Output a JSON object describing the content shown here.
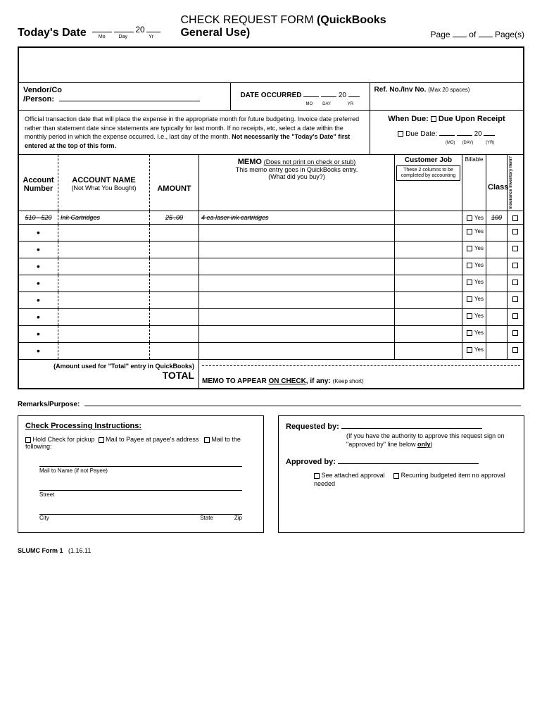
{
  "header": {
    "todays_date": "Today's Date",
    "mo": "Mo",
    "day": "Day",
    "yr": "Yr",
    "twenty": "20",
    "title_a": "CHECK REQUEST FORM ",
    "title_b": "(QuickBooks General Use)",
    "page": "Page",
    "of": "of",
    "pages": "Page(s)"
  },
  "vendor": {
    "label_a": "Vendor/Co",
    "label_b": "/Person:",
    "date_occurred": "DATE OCCURRED",
    "twenty": "20",
    "mo": "MO",
    "day": "DAY",
    "yr": "YR",
    "ref_label": "Ref. No./Inv No.",
    "ref_sub": "(Max 20 spaces)"
  },
  "notes": {
    "text_a": "Official transaction date that will place the expense in the appropriate month for future budgeting.  Invoice date preferred rather than statement date since statements are typically for last month. If no receipts, etc, select a date within the monthly period in which the expense occurred. I.e., last day of the month. ",
    "text_b": "Not necessarily the \"Today's Date\" first entered at the top of this form.",
    "when_due": "When Due:",
    "due_upon": "Due Upon Receipt",
    "due_date": "Due Date:",
    "twenty": "20",
    "mo": "(MO)",
    "day": "(DAY)",
    "yr": "(YR)"
  },
  "thead": {
    "acct_num_a": "Account",
    "acct_num_b": "Number",
    "acct_name_a": "ACCOUNT NAME",
    "acct_name_b": "(Not What You Bought)",
    "amount": "AMOUNT",
    "memo_a": "MEMO",
    "memo_b": "(Does not print on check or stub)",
    "memo_c": "This memo entry goes in QuickBooks entry.",
    "memo_d": "(What did you buy?)",
    "cust_job": "Customer Job",
    "cust_note": "These 2 columns to be completed by accounting",
    "billable": "Billable",
    "class": "Class",
    "inv": "Insurance Inventory Item?"
  },
  "rows": [
    {
      "num": "510 - 520",
      "name": "Ink Cartridges",
      "amt": "25 .00",
      "memo": "4 ea laser ink cartridges",
      "class": "100",
      "strike": true
    },
    {
      "num": "",
      "name": "",
      "amt": "",
      "memo": "",
      "bullet": true
    },
    {
      "num": "",
      "name": "",
      "amt": "",
      "memo": "",
      "bullet": true
    },
    {
      "num": "",
      "name": "",
      "amt": "",
      "memo": "",
      "bullet": true
    },
    {
      "num": "",
      "name": "",
      "amt": "",
      "memo": "",
      "bullet": true
    },
    {
      "num": "",
      "name": "",
      "amt": "",
      "memo": "",
      "bullet": true
    },
    {
      "num": "",
      "name": "",
      "amt": "",
      "memo": "",
      "bullet": true
    },
    {
      "num": "",
      "name": "",
      "amt": "",
      "memo": "",
      "bullet": true
    },
    {
      "num": "",
      "name": "",
      "amt": "",
      "memo": "",
      "bullet": true
    }
  ],
  "yes": "Yes",
  "total": {
    "sub": "(Amount used for \"Total\" entry in QuickBooks)",
    "label": "TOTAL",
    "memo_a": "MEMO TO APPEAR ",
    "memo_b": "ON CHECK",
    "memo_c": ", if any: ",
    "memo_d": "(Keep short)"
  },
  "remarks": {
    "label": "Remarks/Purpose:"
  },
  "left_box": {
    "title": "Check Processing Instructions:",
    "opt1": "Hold Check for pickup",
    "opt2": "Mail to Payee at payee's address",
    "opt3": "Mail to the following:",
    "addr1": "Mail to Name (if not Payee)",
    "addr2": "Street",
    "addr3a": "City",
    "addr3b": "State",
    "addr3c": "Zip"
  },
  "right_box": {
    "req": "Requested by:",
    "req_note_a": "(If you have the authority to approve this request sign on \"approved by\" line below ",
    "req_note_b": "only",
    "req_note_c": ")",
    "appr": "Approved by:",
    "opt1": "See attached  approval",
    "opt2": "Recurring budgeted item no approval needed"
  },
  "footer": {
    "form": "SLUMC Form 1",
    "date": "(1.16.11"
  }
}
